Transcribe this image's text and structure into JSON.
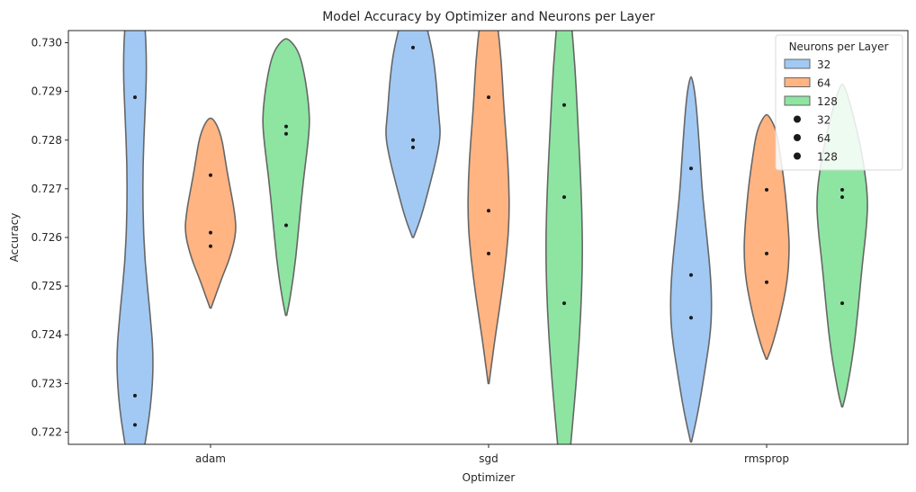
{
  "chart_data": {
    "type": "violin",
    "title": "Model Accuracy by Optimizer and Neurons per Layer",
    "xlabel": "Optimizer",
    "ylabel": "Accuracy",
    "categories": [
      "adam",
      "sgd",
      "rmsprop"
    ],
    "ylim": [
      0.72175,
      0.73025
    ],
    "yticks": [
      {
        "value": 0.722,
        "label": "0.722"
      },
      {
        "value": 0.723,
        "label": "0.723"
      },
      {
        "value": 0.724,
        "label": "0.724"
      },
      {
        "value": 0.725,
        "label": "0.725"
      },
      {
        "value": 0.726,
        "label": "0.726"
      },
      {
        "value": 0.727,
        "label": "0.727"
      },
      {
        "value": 0.728,
        "label": "0.728"
      },
      {
        "value": 0.729,
        "label": "0.729"
      },
      {
        "value": 0.73,
        "label": "0.730"
      }
    ],
    "grid": false,
    "legend": {
      "title": "Neurons per Layer",
      "position": "top-right",
      "fill_entries": [
        "32",
        "64",
        "128"
      ],
      "point_entries": [
        "32",
        "64",
        "128"
      ]
    },
    "series": [
      {
        "name": "32",
        "color": "#a1c9f4",
        "violins": [
          {
            "category": "adam",
            "points": [
              0.72888,
              0.72275,
              0.72215
            ],
            "profile": [
              [
                0.7205,
                0.2
              ],
              [
                0.7215,
                0.8
              ],
              [
                0.7225,
                1.6
              ],
              [
                0.7235,
                1.9
              ],
              [
                0.7245,
                1.5
              ],
              [
                0.7255,
                1.0
              ],
              [
                0.7265,
                0.8
              ],
              [
                0.7275,
                0.8
              ],
              [
                0.7285,
                1.0
              ],
              [
                0.7295,
                1.2
              ],
              [
                0.7305,
                1.0
              ],
              [
                0.7315,
                0.2
              ]
            ]
          },
          {
            "category": "sgd",
            "points": [
              0.7299,
              0.728,
              0.72785
            ],
            "profile": [
              [
                0.726,
                0.05
              ],
              [
                0.7264,
                0.8
              ],
              [
                0.727,
                1.6
              ],
              [
                0.7276,
                2.35
              ],
              [
                0.7281,
                2.8
              ],
              [
                0.7285,
                2.6
              ],
              [
                0.7292,
                2.35
              ],
              [
                0.7298,
                2.0
              ],
              [
                0.7304,
                1.3
              ],
              [
                0.731,
                0.6
              ],
              [
                0.7314,
                0.2
              ]
            ]
          },
          {
            "category": "rmsprop",
            "points": [
              0.72742,
              0.72523,
              0.72435
            ],
            "profile": [
              [
                0.7218,
                0.05
              ],
              [
                0.7224,
                0.7
              ],
              [
                0.7232,
                1.35
              ],
              [
                0.724,
                1.95
              ],
              [
                0.7246,
                2.1
              ],
              [
                0.7253,
                1.95
              ],
              [
                0.7262,
                1.5
              ],
              [
                0.727,
                1.1
              ],
              [
                0.728,
                0.8
              ],
              [
                0.7289,
                0.45
              ],
              [
                0.7293,
                0.1
              ]
            ]
          }
        ]
      },
      {
        "name": "64",
        "color": "#ffb482",
        "violins": [
          {
            "category": "adam",
            "points": [
              0.72728,
              0.7261,
              0.72582
            ],
            "profile": [
              [
                0.72455,
                0.05
              ],
              [
                0.7248,
                0.5
              ],
              [
                0.7252,
                1.2
              ],
              [
                0.7256,
                2.0
              ],
              [
                0.7261,
                2.6
              ],
              [
                0.7265,
                2.45
              ],
              [
                0.727,
                2.0
              ],
              [
                0.7275,
                1.55
              ],
              [
                0.7281,
                1.1
              ],
              [
                0.72845,
                0.3
              ]
            ]
          },
          {
            "category": "sgd",
            "points": [
              0.72888,
              0.72655,
              0.72567
            ],
            "profile": [
              [
                0.723,
                0.05
              ],
              [
                0.7234,
                0.3
              ],
              [
                0.724,
                0.7
              ],
              [
                0.7248,
                1.3
              ],
              [
                0.7256,
                1.8
              ],
              [
                0.7264,
                2.1
              ],
              [
                0.7272,
                2.05
              ],
              [
                0.728,
                1.8
              ],
              [
                0.7288,
                1.5
              ],
              [
                0.7296,
                1.3
              ],
              [
                0.7304,
                0.9
              ],
              [
                0.7309,
                0.4
              ]
            ]
          },
          {
            "category": "rmsprop",
            "points": [
              0.72698,
              0.72567,
              0.72508
            ],
            "profile": [
              [
                0.7235,
                0.05
              ],
              [
                0.7238,
                0.6
              ],
              [
                0.7244,
                1.4
              ],
              [
                0.7251,
                2.1
              ],
              [
                0.7257,
                2.3
              ],
              [
                0.7262,
                2.2
              ],
              [
                0.727,
                1.85
              ],
              [
                0.7276,
                1.45
              ],
              [
                0.7282,
                1.0
              ],
              [
                0.72852,
                0.2
              ]
            ]
          }
        ]
      },
      {
        "name": "128",
        "color": "#8de5a1",
        "violins": [
          {
            "category": "adam",
            "points": [
              0.72828,
              0.72813,
              0.72625
            ],
            "profile": [
              [
                0.7244,
                0.05
              ],
              [
                0.7248,
                0.45
              ],
              [
                0.7256,
                1.0
              ],
              [
                0.7264,
                1.35
              ],
              [
                0.7272,
                1.75
              ],
              [
                0.728,
                2.25
              ],
              [
                0.7285,
                2.4
              ],
              [
                0.7292,
                2.0
              ],
              [
                0.7298,
                1.35
              ],
              [
                0.73008,
                0.3
              ]
            ]
          },
          {
            "category": "sgd",
            "points": [
              0.72872,
              0.72683,
              0.72465
            ],
            "profile": [
              [
                0.7205,
                0.1
              ],
              [
                0.7215,
                0.55
              ],
              [
                0.7225,
                1.0
              ],
              [
                0.7235,
                1.4
              ],
              [
                0.7245,
                1.7
              ],
              [
                0.7255,
                1.85
              ],
              [
                0.7265,
                1.8
              ],
              [
                0.7275,
                1.6
              ],
              [
                0.7285,
                1.35
              ],
              [
                0.7295,
                1.1
              ],
              [
                0.7305,
                0.7
              ],
              [
                0.7313,
                0.25
              ]
            ]
          },
          {
            "category": "rmsprop",
            "points": [
              0.72698,
              0.72683,
              0.72465
            ],
            "profile": [
              [
                0.72252,
                0.05
              ],
              [
                0.7228,
                0.4
              ],
              [
                0.7236,
                1.1
              ],
              [
                0.7245,
                1.6
              ],
              [
                0.7254,
                2.0
              ],
              [
                0.7262,
                2.45
              ],
              [
                0.7268,
                2.6
              ],
              [
                0.7275,
                2.2
              ],
              [
                0.7282,
                1.5
              ],
              [
                0.7289,
                0.6
              ],
              [
                0.72915,
                0.1
              ]
            ]
          }
        ]
      }
    ]
  }
}
